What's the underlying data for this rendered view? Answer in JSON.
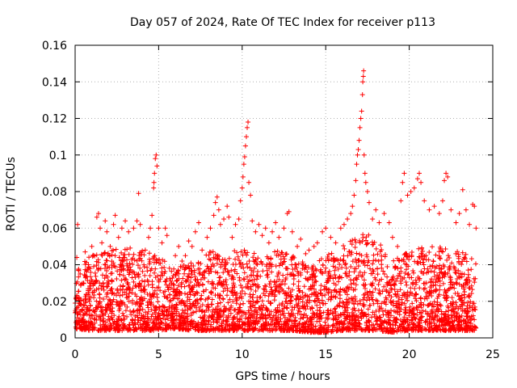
{
  "chart_data": {
    "type": "scatter",
    "title": "Day 057 of 2024, Rate Of TEC Index for receiver p113",
    "xlabel": "GPS time / hours",
    "ylabel": "ROTI / TECUs",
    "xlim": [
      0,
      25
    ],
    "ylim": [
      0,
      0.16
    ],
    "xticks": [
      0,
      5,
      10,
      15,
      20,
      25
    ],
    "xtick_labels": [
      "0",
      "5",
      "10",
      "15",
      "20",
      "25"
    ],
    "yticks": [
      0,
      0.02,
      0.04,
      0.06,
      0.08,
      0.1,
      0.12,
      0.14,
      0.16
    ],
    "ytick_labels": [
      "0",
      "0.02",
      "0.04",
      "0.06",
      "0.08",
      "0.1",
      "0.12",
      "0.14",
      "0.16"
    ],
    "grid": true,
    "marker": "+",
    "color": "#ff0000",
    "series": [
      {
        "name": "ROTI",
        "points": [
          [
            0.1,
            0.044
          ],
          [
            0.15,
            0.062
          ],
          [
            0.3,
            0.035
          ],
          [
            0.5,
            0.03
          ],
          [
            0.6,
            0.047
          ],
          [
            0.8,
            0.04
          ],
          [
            1.0,
            0.05
          ],
          [
            1.1,
            0.045
          ],
          [
            1.3,
            0.066
          ],
          [
            1.4,
            0.068
          ],
          [
            1.5,
            0.06
          ],
          [
            1.6,
            0.052
          ],
          [
            1.8,
            0.064
          ],
          [
            1.9,
            0.058
          ],
          [
            2.1,
            0.05
          ],
          [
            2.3,
            0.062
          ],
          [
            2.4,
            0.067
          ],
          [
            2.6,
            0.055
          ],
          [
            2.8,
            0.06
          ],
          [
            3.0,
            0.064
          ],
          [
            3.2,
            0.058
          ],
          [
            3.5,
            0.06
          ],
          [
            3.7,
            0.064
          ],
          [
            3.8,
            0.079
          ],
          [
            3.9,
            0.062
          ],
          [
            4.2,
            0.048
          ],
          [
            4.4,
            0.055
          ],
          [
            4.5,
            0.06
          ],
          [
            4.6,
            0.067
          ],
          [
            4.7,
            0.082
          ],
          [
            4.72,
            0.085
          ],
          [
            4.75,
            0.09
          ],
          [
            4.8,
            0.098
          ],
          [
            4.85,
            0.1
          ],
          [
            4.9,
            0.094
          ],
          [
            5.0,
            0.06
          ],
          [
            5.2,
            0.052
          ],
          [
            5.4,
            0.06
          ],
          [
            5.5,
            0.056
          ],
          [
            6.0,
            0.045
          ],
          [
            6.2,
            0.05
          ],
          [
            6.4,
            0.042
          ],
          [
            6.6,
            0.045
          ],
          [
            6.8,
            0.053
          ],
          [
            7.0,
            0.05
          ],
          [
            7.2,
            0.058
          ],
          [
            7.4,
            0.063
          ],
          [
            7.6,
            0.048
          ],
          [
            7.9,
            0.055
          ],
          [
            8.1,
            0.06
          ],
          [
            8.3,
            0.067
          ],
          [
            8.4,
            0.074
          ],
          [
            8.5,
            0.077
          ],
          [
            8.6,
            0.07
          ],
          [
            8.7,
            0.062
          ],
          [
            8.9,
            0.065
          ],
          [
            9.1,
            0.072
          ],
          [
            9.2,
            0.066
          ],
          [
            9.4,
            0.055
          ],
          [
            9.6,
            0.062
          ],
          [
            9.8,
            0.065
          ],
          [
            9.9,
            0.075
          ],
          [
            10.0,
            0.082
          ],
          [
            10.05,
            0.088
          ],
          [
            10.1,
            0.095
          ],
          [
            10.15,
            0.099
          ],
          [
            10.2,
            0.105
          ],
          [
            10.25,
            0.11
          ],
          [
            10.3,
            0.115
          ],
          [
            10.35,
            0.118
          ],
          [
            10.4,
            0.085
          ],
          [
            10.5,
            0.078
          ],
          [
            10.6,
            0.064
          ],
          [
            10.8,
            0.058
          ],
          [
            11.0,
            0.062
          ],
          [
            11.2,
            0.056
          ],
          [
            11.4,
            0.06
          ],
          [
            11.6,
            0.052
          ],
          [
            11.8,
            0.058
          ],
          [
            12.0,
            0.063
          ],
          [
            12.2,
            0.055
          ],
          [
            12.5,
            0.06
          ],
          [
            12.7,
            0.068
          ],
          [
            12.8,
            0.069
          ],
          [
            13.0,
            0.058
          ],
          [
            13.3,
            0.05
          ],
          [
            13.5,
            0.054
          ],
          [
            13.8,
            0.046
          ],
          [
            14.0,
            0.048
          ],
          [
            14.3,
            0.05
          ],
          [
            14.5,
            0.052
          ],
          [
            14.8,
            0.058
          ],
          [
            15.0,
            0.06
          ],
          [
            15.3,
            0.055
          ],
          [
            15.6,
            0.052
          ],
          [
            15.9,
            0.06
          ],
          [
            16.1,
            0.062
          ],
          [
            16.3,
            0.065
          ],
          [
            16.5,
            0.068
          ],
          [
            16.6,
            0.072
          ],
          [
            16.7,
            0.078
          ],
          [
            16.8,
            0.086
          ],
          [
            16.85,
            0.095
          ],
          [
            16.9,
            0.1
          ],
          [
            16.95,
            0.103
          ],
          [
            17.0,
            0.108
          ],
          [
            17.05,
            0.115
          ],
          [
            17.1,
            0.12
          ],
          [
            17.15,
            0.124
          ],
          [
            17.2,
            0.133
          ],
          [
            17.22,
            0.14
          ],
          [
            17.25,
            0.143
          ],
          [
            17.27,
            0.146
          ],
          [
            17.3,
            0.1
          ],
          [
            17.35,
            0.09
          ],
          [
            17.4,
            0.085
          ],
          [
            17.5,
            0.08
          ],
          [
            17.6,
            0.074
          ],
          [
            17.8,
            0.065
          ],
          [
            18.0,
            0.07
          ],
          [
            18.2,
            0.063
          ],
          [
            18.5,
            0.068
          ],
          [
            18.8,
            0.063
          ],
          [
            19.0,
            0.055
          ],
          [
            19.3,
            0.05
          ],
          [
            19.5,
            0.075
          ],
          [
            19.6,
            0.085
          ],
          [
            19.7,
            0.09
          ],
          [
            19.9,
            0.078
          ],
          [
            20.1,
            0.08
          ],
          [
            20.3,
            0.082
          ],
          [
            20.5,
            0.087
          ],
          [
            20.6,
            0.09
          ],
          [
            20.7,
            0.085
          ],
          [
            20.9,
            0.075
          ],
          [
            21.2,
            0.07
          ],
          [
            21.5,
            0.072
          ],
          [
            21.8,
            0.068
          ],
          [
            22.0,
            0.075
          ],
          [
            22.1,
            0.086
          ],
          [
            22.2,
            0.09
          ],
          [
            22.3,
            0.088
          ],
          [
            22.5,
            0.07
          ],
          [
            22.8,
            0.063
          ],
          [
            23.0,
            0.068
          ],
          [
            23.2,
            0.081
          ],
          [
            23.4,
            0.07
          ],
          [
            23.6,
            0.062
          ],
          [
            23.8,
            0.073
          ],
          [
            23.9,
            0.072
          ],
          [
            24.0,
            0.06
          ]
        ]
      }
    ],
    "dense_background": {
      "note": "Approximate density envelope of the thousands of plotted points: upper extent vs GPS hour.",
      "hours": [
        0,
        1,
        2,
        3,
        4,
        5,
        6,
        7,
        8,
        9,
        10,
        11,
        12,
        13,
        14,
        15,
        16,
        17,
        18,
        19,
        20,
        21,
        22,
        23,
        24
      ],
      "upper": [
        0.04,
        0.045,
        0.05,
        0.05,
        0.048,
        0.045,
        0.038,
        0.042,
        0.048,
        0.045,
        0.05,
        0.045,
        0.048,
        0.045,
        0.04,
        0.045,
        0.05,
        0.058,
        0.055,
        0.042,
        0.048,
        0.05,
        0.05,
        0.048,
        0.045
      ],
      "lower": [
        0.005,
        0.004,
        0.004,
        0.004,
        0.004,
        0.004,
        0.005,
        0.004,
        0.004,
        0.004,
        0.004,
        0.004,
        0.004,
        0.004,
        0.003,
        0.003,
        0.004,
        0.004,
        0.004,
        0.003,
        0.004,
        0.004,
        0.004,
        0.004,
        0.004
      ]
    }
  }
}
